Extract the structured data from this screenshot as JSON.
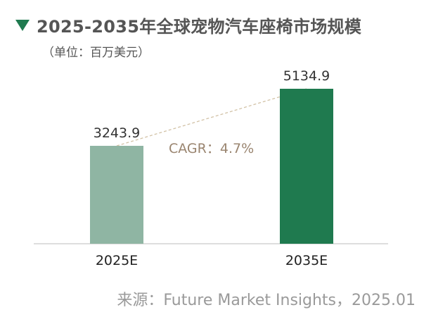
{
  "header": {
    "title": "2025-2035年全球宠物汽车座椅市场规模",
    "unit": "（单位：百万美元）"
  },
  "chart_data": {
    "type": "bar",
    "categories": [
      "2025E",
      "2035E"
    ],
    "values": [
      3243.9,
      5134.9
    ],
    "value_labels": [
      "3243.9",
      "5134.9"
    ],
    "colors": [
      "#8fb5a3",
      "#1f7a4f"
    ],
    "annotation": "CAGR：4.7%",
    "annotation_color": "#9a8570",
    "ylim": [
      0,
      5134.9
    ],
    "grid": false,
    "legend": "none"
  },
  "footer": {
    "source": "来源：Future Market Insights，2025.01"
  }
}
